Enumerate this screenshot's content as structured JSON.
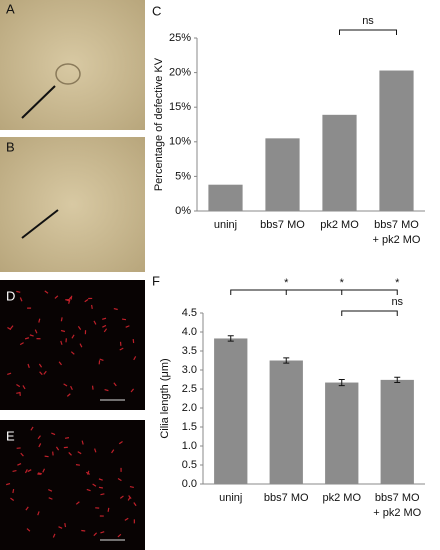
{
  "panels": [
    "A",
    "B",
    "D",
    "E"
  ],
  "chart_data": [
    {
      "type": "bar",
      "label": "C",
      "y_label": "Percentage of defective KV",
      "categories": [
        "uninj",
        "bbs7 MO",
        "pk2 MO",
        "bbs7 MO\n+ pk2 MO"
      ],
      "values": [
        3.8,
        10.5,
        13.9,
        20.3
      ],
      "color": "#8c8c8c",
      "ylim": [
        0,
        25
      ],
      "yticks": [
        {
          "value": 0,
          "label": "0%"
        },
        {
          "value": 5,
          "label": "5%"
        },
        {
          "value": 10,
          "label": "10%"
        },
        {
          "value": 15,
          "label": "15%"
        },
        {
          "value": 20,
          "label": "20%"
        },
        {
          "value": 25,
          "label": "25%"
        }
      ],
      "annotations": [
        "ns"
      ]
    },
    {
      "type": "bar",
      "label": "F",
      "y_label": "Cilia length (μm)",
      "categories": [
        "uninj",
        "bbs7 MO",
        "pk2 MO",
        "bbs7 MO\n+ pk2 MO"
      ],
      "values": [
        3.83,
        3.25,
        2.67,
        2.74
      ],
      "errors": [
        0.07,
        0.07,
        0.08,
        0.07
      ],
      "color": "#8c8c8c",
      "ylim": [
        0,
        4.5
      ],
      "yticks": [
        {
          "value": 0,
          "label": "0.0"
        },
        {
          "value": 0.5,
          "label": "0.5"
        },
        {
          "value": 1,
          "label": "1.0"
        },
        {
          "value": 1.5,
          "label": "1.5"
        },
        {
          "value": 2,
          "label": "2.0"
        },
        {
          "value": 2.5,
          "label": "2.5"
        },
        {
          "value": 3,
          "label": "3.0"
        },
        {
          "value": 3.5,
          "label": "3.5"
        },
        {
          "value": 4,
          "label": "4.0"
        },
        {
          "value": 4.5,
          "label": "4.5"
        }
      ],
      "annotations": [
        "*",
        "*",
        "*",
        "ns"
      ]
    }
  ]
}
